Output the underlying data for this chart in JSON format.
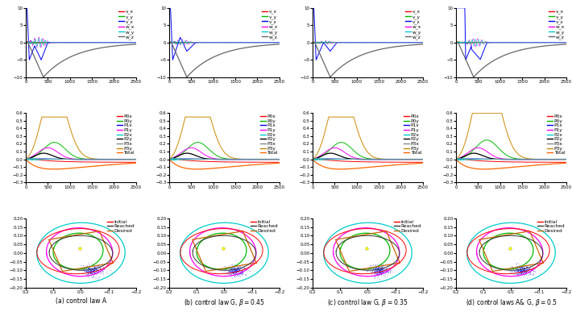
{
  "fig_width": 7.1,
  "fig_height": 3.92,
  "dpi": 100,
  "top_legend_labels": [
    "v_x",
    "v_y",
    "v_z",
    "w_x",
    "w_y",
    "w_z"
  ],
  "top_legend_colors": [
    "#ff0000",
    "#00bb00",
    "#0000ff",
    "#ff00ff",
    "#00cccc",
    "#666666"
  ],
  "mid_legend_labels": [
    "P0x",
    "P0y",
    "P1x",
    "P1y",
    "P2x",
    "P2y",
    "P3x",
    "P3y",
    "Total"
  ],
  "mid_legend_colors": [
    "#ff0000",
    "#00bb00",
    "#0000ff",
    "#ff00ff",
    "#00cccc",
    "#000000",
    "#888888",
    "#cc8800",
    "#ff6600"
  ],
  "bot_legend_labels": [
    "Initial",
    "Reached",
    "Desired"
  ],
  "bot_legend_colors": [
    "#ff0000",
    "#333333",
    "#cc6600"
  ],
  "captions": [
    "(a) control law A",
    "(b) control law G, $\\beta = 0.45$",
    "(c) control law G, $\\beta = 0.35$",
    "(d) control laws A& G, $\\beta = 0.5$"
  ],
  "xticks_top": [
    0,
    500,
    1000,
    1500,
    2000,
    2500
  ],
  "yticks_top": [
    -10,
    -5,
    0,
    5,
    10
  ],
  "xticks_mid": [
    0,
    500,
    1000,
    1500,
    2000,
    2500
  ],
  "yticks_mid": [
    -0.3,
    -0.2,
    -0.1,
    0.0,
    0.1,
    0.2,
    0.3,
    0.4,
    0.5,
    0.6
  ],
  "xticks_bot": [
    0.2,
    0.1,
    0.0,
    -0.1,
    -0.2
  ],
  "yticks_bot": [
    -0.2,
    -0.15,
    -0.1,
    -0.05,
    0.0,
    0.05,
    0.1,
    0.15,
    0.2
  ]
}
